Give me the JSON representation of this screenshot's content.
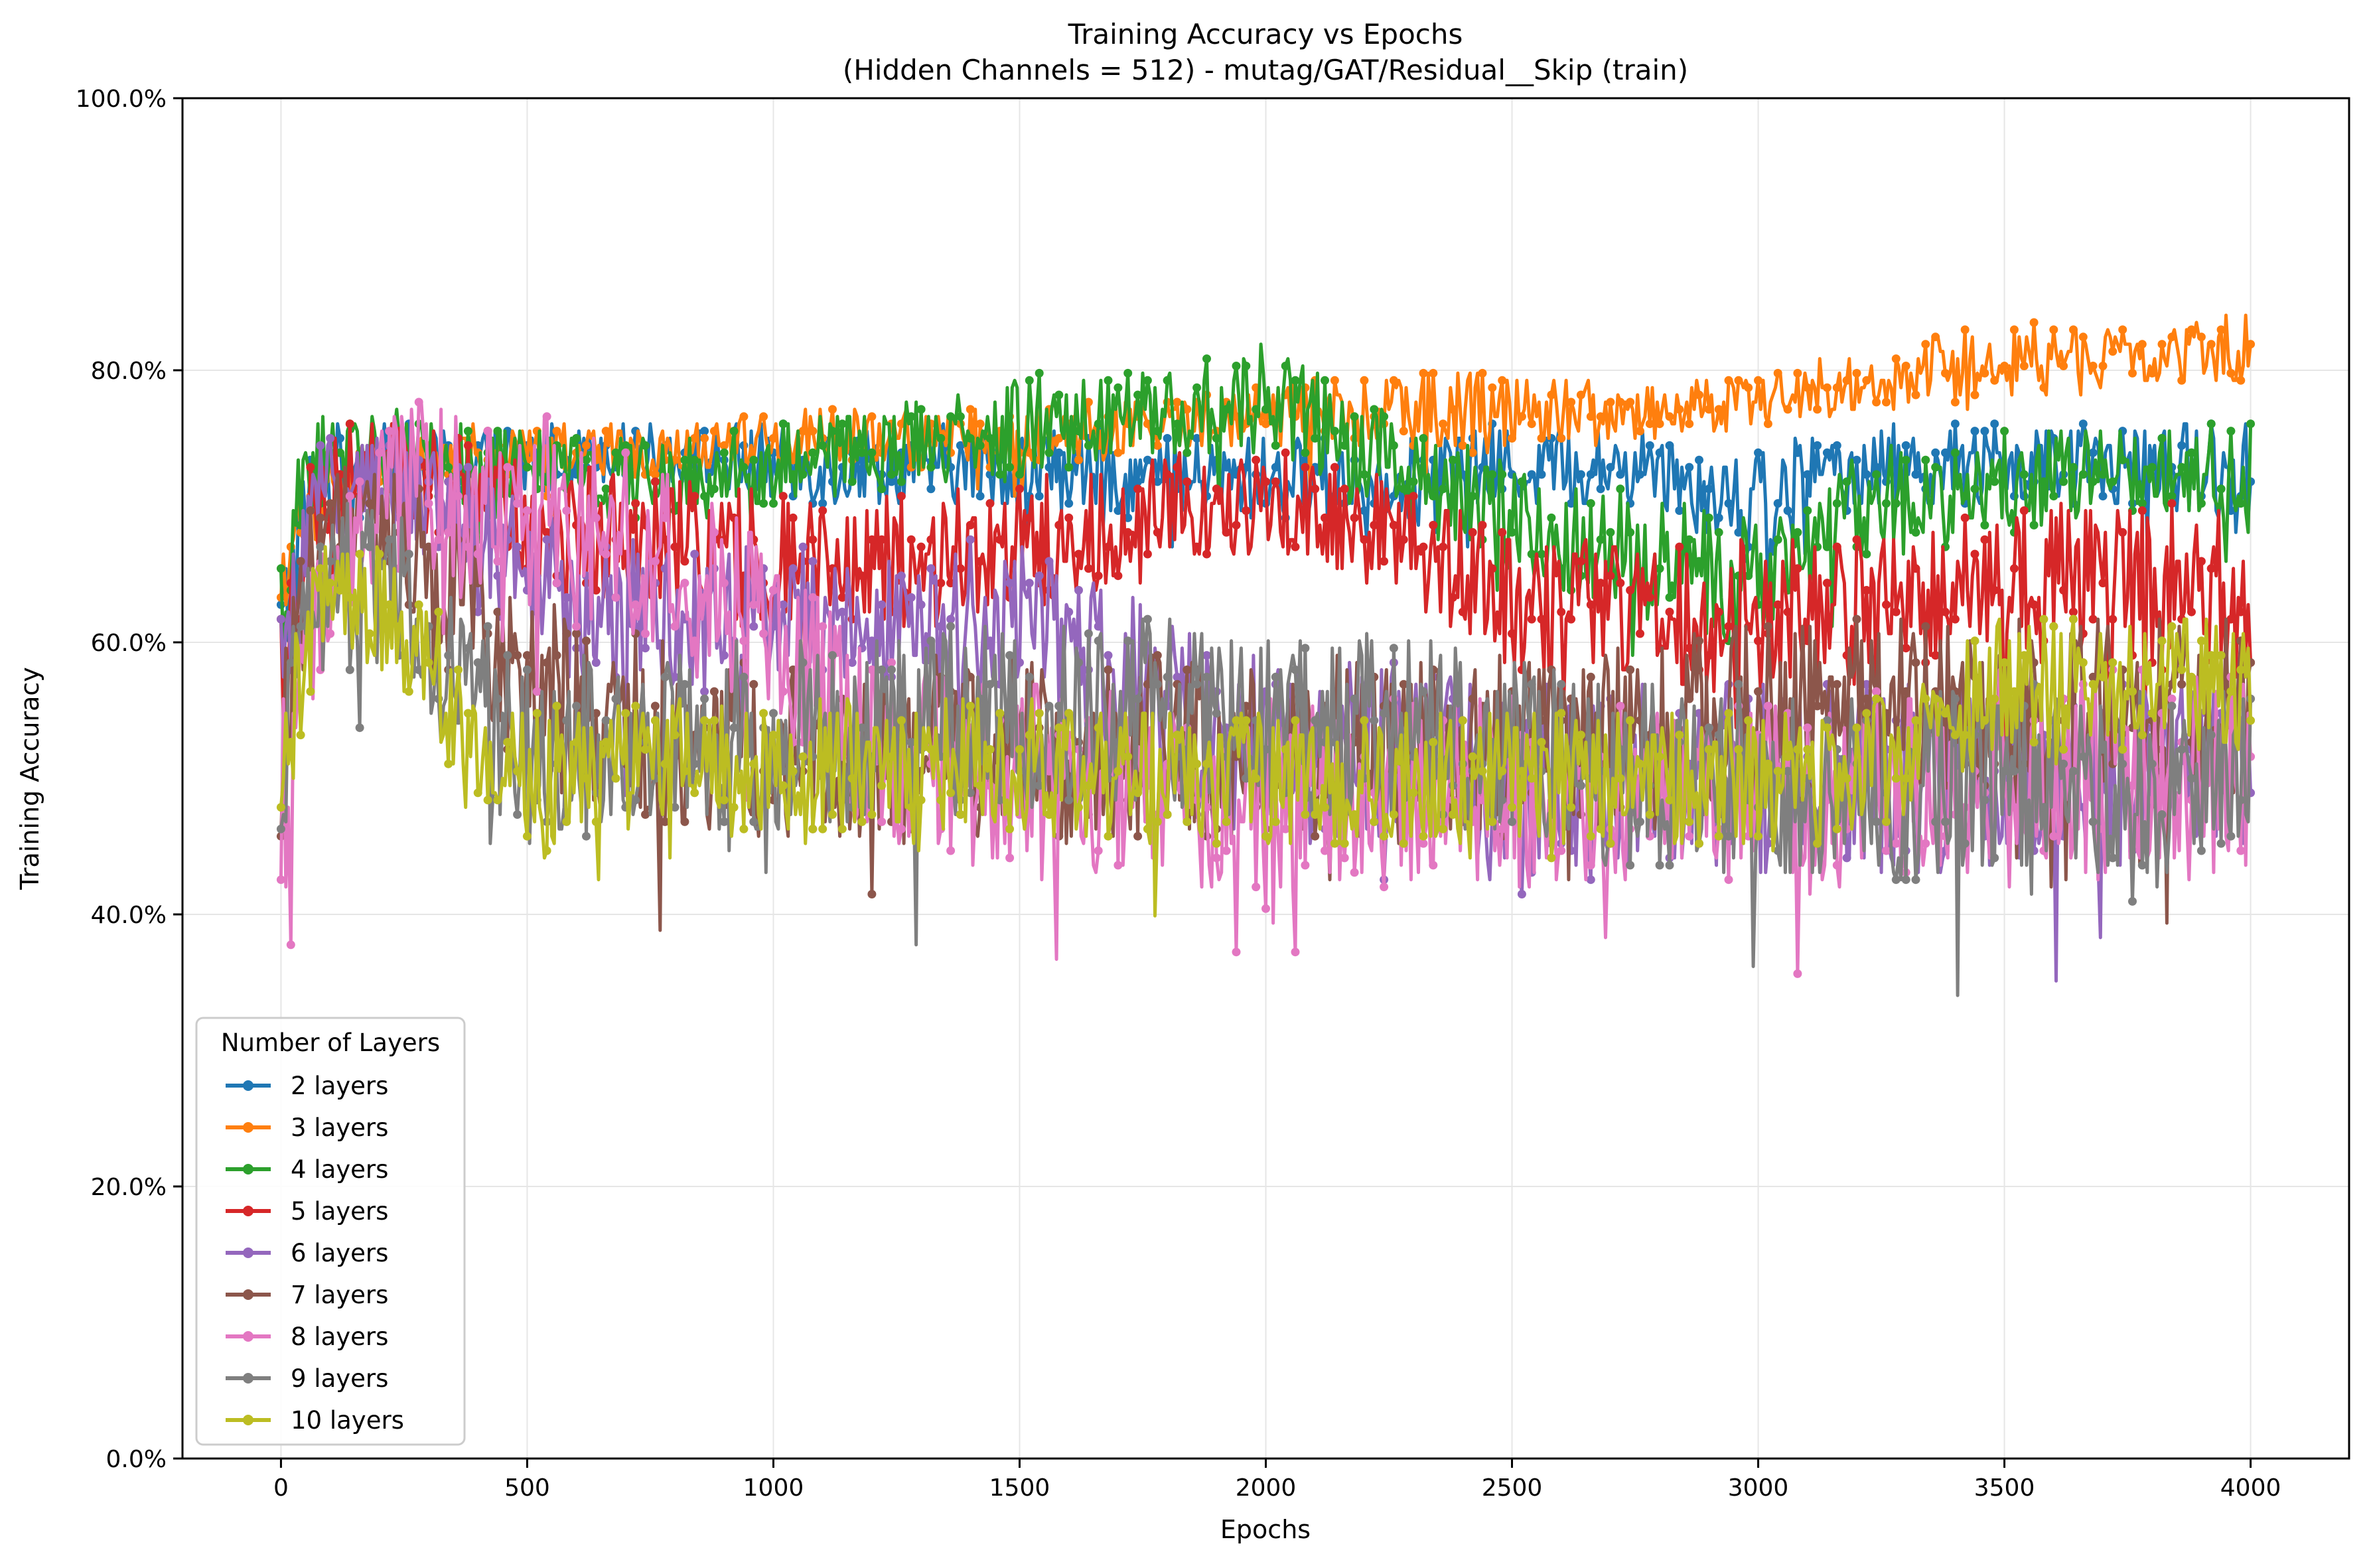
{
  "chart_data": {
    "type": "line",
    "title": "Training Accuracy vs Epochs",
    "subtitle": "(Hidden Channels = 512) - mutag/GAT/Residual__Skip (train)",
    "xlabel": "Epochs",
    "ylabel": "Training Accuracy",
    "xlim": [
      -200,
      4200
    ],
    "ylim": [
      0,
      1
    ],
    "x_ticks": [
      0,
      500,
      1000,
      1500,
      2000,
      2500,
      3000,
      3500,
      4000
    ],
    "x_tick_labels": [
      "0",
      "500",
      "1000",
      "1500",
      "2000",
      "2500",
      "3000",
      "3500",
      "4000"
    ],
    "y_ticks": [
      0,
      0.2,
      0.4,
      0.6,
      0.8,
      1.0
    ],
    "y_tick_labels": [
      "0.0%",
      "20.0%",
      "40.0%",
      "60.0%",
      "80.0%",
      "100.0%"
    ],
    "grid": true,
    "legend": {
      "title": "Number of Layers",
      "position": "lower-left"
    },
    "series": [
      {
        "name": "2 layers",
        "color": "#1f77b4",
        "x": [
          0,
          50,
          100,
          200,
          300,
          400,
          500,
          600,
          800,
          1000,
          1200,
          1500,
          1800,
          2000,
          2200,
          2500,
          2800,
          3000,
          3200,
          3500,
          3800,
          4000
        ],
        "center": [
          0.6,
          0.7,
          0.72,
          0.73,
          0.73,
          0.73,
          0.73,
          0.74,
          0.74,
          0.73,
          0.73,
          0.73,
          0.72,
          0.72,
          0.72,
          0.73,
          0.73,
          0.7,
          0.73,
          0.73,
          0.73,
          0.73
        ],
        "amplitude": [
          0.06,
          0.04,
          0.04,
          0.03,
          0.03,
          0.03,
          0.03,
          0.02,
          0.02,
          0.03,
          0.03,
          0.03,
          0.03,
          0.03,
          0.03,
          0.03,
          0.03,
          0.05,
          0.03,
          0.03,
          0.03,
          0.04
        ]
      },
      {
        "name": "3 layers",
        "color": "#ff7f0e",
        "x": [
          0,
          50,
          100,
          200,
          300,
          400,
          500,
          600,
          800,
          1000,
          1200,
          1500,
          1800,
          2000,
          2200,
          2500,
          2800,
          3000,
          3200,
          3500,
          3800,
          4000
        ],
        "center": [
          0.6,
          0.7,
          0.72,
          0.73,
          0.74,
          0.74,
          0.74,
          0.74,
          0.74,
          0.75,
          0.75,
          0.75,
          0.76,
          0.77,
          0.77,
          0.77,
          0.77,
          0.78,
          0.79,
          0.81,
          0.81,
          0.82
        ],
        "amplitude": [
          0.06,
          0.04,
          0.03,
          0.02,
          0.02,
          0.02,
          0.02,
          0.02,
          0.02,
          0.02,
          0.02,
          0.02,
          0.02,
          0.02,
          0.03,
          0.03,
          0.02,
          0.02,
          0.02,
          0.03,
          0.02,
          0.03
        ]
      },
      {
        "name": "4 layers",
        "color": "#2ca02c",
        "x": [
          0,
          50,
          100,
          200,
          300,
          400,
          500,
          600,
          800,
          1000,
          1200,
          1500,
          1800,
          2000,
          2200,
          2500,
          2800,
          3000,
          3200,
          3500,
          3800,
          4000
        ],
        "center": [
          0.62,
          0.72,
          0.74,
          0.75,
          0.73,
          0.73,
          0.73,
          0.72,
          0.72,
          0.73,
          0.74,
          0.76,
          0.77,
          0.78,
          0.74,
          0.69,
          0.66,
          0.64,
          0.7,
          0.72,
          0.73,
          0.72
        ],
        "amplitude": [
          0.05,
          0.04,
          0.03,
          0.03,
          0.03,
          0.03,
          0.03,
          0.03,
          0.03,
          0.03,
          0.03,
          0.04,
          0.03,
          0.04,
          0.04,
          0.04,
          0.05,
          0.05,
          0.04,
          0.04,
          0.03,
          0.04
        ]
      },
      {
        "name": "5 layers",
        "color": "#d62728",
        "x": [
          0,
          50,
          100,
          200,
          300,
          400,
          500,
          600,
          800,
          1000,
          1200,
          1500,
          1800,
          2000,
          2200,
          2500,
          2800,
          3000,
          3200,
          3500,
          3800,
          4000
        ],
        "center": [
          0.55,
          0.68,
          0.72,
          0.74,
          0.72,
          0.72,
          0.7,
          0.68,
          0.67,
          0.66,
          0.66,
          0.67,
          0.7,
          0.7,
          0.69,
          0.63,
          0.62,
          0.62,
          0.62,
          0.64,
          0.64,
          0.64
        ],
        "amplitude": [
          0.08,
          0.05,
          0.04,
          0.03,
          0.04,
          0.04,
          0.05,
          0.05,
          0.05,
          0.05,
          0.05,
          0.05,
          0.04,
          0.04,
          0.04,
          0.05,
          0.05,
          0.06,
          0.06,
          0.06,
          0.06,
          0.06
        ]
      },
      {
        "name": "6 layers",
        "color": "#9467bd",
        "x": [
          0,
          50,
          100,
          200,
          300,
          400,
          500,
          600,
          800,
          1000,
          1200,
          1500,
          1800,
          2000,
          2200,
          2500,
          2800,
          3000,
          3200,
          3500,
          3800,
          4000
        ],
        "center": [
          0.55,
          0.68,
          0.72,
          0.72,
          0.7,
          0.68,
          0.64,
          0.62,
          0.62,
          0.62,
          0.62,
          0.62,
          0.55,
          0.52,
          0.52,
          0.5,
          0.5,
          0.5,
          0.5,
          0.5,
          0.5,
          0.5
        ],
        "amplitude": [
          0.07,
          0.05,
          0.04,
          0.04,
          0.05,
          0.06,
          0.06,
          0.06,
          0.06,
          0.05,
          0.05,
          0.06,
          0.07,
          0.07,
          0.07,
          0.07,
          0.07,
          0.07,
          0.07,
          0.07,
          0.07,
          0.07
        ]
      },
      {
        "name": "7 layers",
        "color": "#8c564b",
        "x": [
          0,
          50,
          100,
          200,
          300,
          400,
          500,
          600,
          800,
          1000,
          1200,
          1500,
          1800,
          2000,
          2200,
          2500,
          2800,
          3000,
          3200,
          3500,
          3800,
          4000
        ],
        "center": [
          0.52,
          0.64,
          0.68,
          0.7,
          0.66,
          0.62,
          0.57,
          0.55,
          0.53,
          0.52,
          0.52,
          0.52,
          0.52,
          0.52,
          0.52,
          0.52,
          0.53,
          0.55,
          0.55,
          0.55,
          0.55,
          0.55
        ],
        "amplitude": [
          0.07,
          0.05,
          0.05,
          0.05,
          0.06,
          0.07,
          0.07,
          0.07,
          0.07,
          0.07,
          0.07,
          0.07,
          0.07,
          0.07,
          0.07,
          0.07,
          0.07,
          0.07,
          0.07,
          0.07,
          0.07,
          0.07
        ]
      },
      {
        "name": "8 layers",
        "color": "#e377c2",
        "x": [
          0,
          50,
          100,
          200,
          300,
          400,
          500,
          600,
          800,
          1000,
          1200,
          1500,
          1800,
          2000,
          2200,
          2500,
          2800,
          3000,
          3200,
          3500,
          3800,
          4000
        ],
        "center": [
          0.48,
          0.58,
          0.64,
          0.7,
          0.72,
          0.71,
          0.7,
          0.68,
          0.66,
          0.6,
          0.52,
          0.5,
          0.49,
          0.49,
          0.49,
          0.49,
          0.49,
          0.49,
          0.49,
          0.5,
          0.5,
          0.5
        ],
        "amplitude": [
          0.07,
          0.06,
          0.06,
          0.06,
          0.07,
          0.07,
          0.08,
          0.08,
          0.07,
          0.07,
          0.07,
          0.07,
          0.07,
          0.07,
          0.07,
          0.07,
          0.07,
          0.07,
          0.07,
          0.08,
          0.08,
          0.08
        ]
      },
      {
        "name": "9 layers",
        "color": "#7f7f7f",
        "x": [
          0,
          50,
          100,
          200,
          300,
          400,
          500,
          600,
          800,
          1000,
          1200,
          1500,
          1800,
          2000,
          2200,
          2500,
          2800,
          3000,
          3200,
          3500,
          3800,
          4000
        ],
        "center": [
          0.5,
          0.62,
          0.64,
          0.64,
          0.62,
          0.55,
          0.52,
          0.52,
          0.53,
          0.53,
          0.53,
          0.55,
          0.55,
          0.54,
          0.54,
          0.52,
          0.5,
          0.5,
          0.49,
          0.5,
          0.5,
          0.5
        ],
        "amplitude": [
          0.06,
          0.05,
          0.06,
          0.06,
          0.07,
          0.07,
          0.07,
          0.07,
          0.07,
          0.07,
          0.07,
          0.07,
          0.07,
          0.07,
          0.07,
          0.07,
          0.07,
          0.07,
          0.07,
          0.07,
          0.07,
          0.07
        ]
      },
      {
        "name": "10 layers",
        "color": "#bcbd22",
        "x": [
          0,
          50,
          100,
          200,
          300,
          400,
          500,
          600,
          800,
          1000,
          1200,
          1500,
          1800,
          2000,
          2200,
          2500,
          2800,
          3000,
          3200,
          3500,
          3800,
          4000
        ],
        "center": [
          0.5,
          0.6,
          0.63,
          0.62,
          0.59,
          0.51,
          0.5,
          0.51,
          0.51,
          0.51,
          0.51,
          0.51,
          0.5,
          0.5,
          0.5,
          0.5,
          0.5,
          0.5,
          0.5,
          0.57,
          0.57,
          0.57
        ],
        "amplitude": [
          0.05,
          0.05,
          0.05,
          0.05,
          0.05,
          0.05,
          0.05,
          0.05,
          0.05,
          0.05,
          0.05,
          0.05,
          0.05,
          0.05,
          0.05,
          0.05,
          0.05,
          0.05,
          0.05,
          0.05,
          0.05,
          0.05
        ]
      }
    ]
  }
}
